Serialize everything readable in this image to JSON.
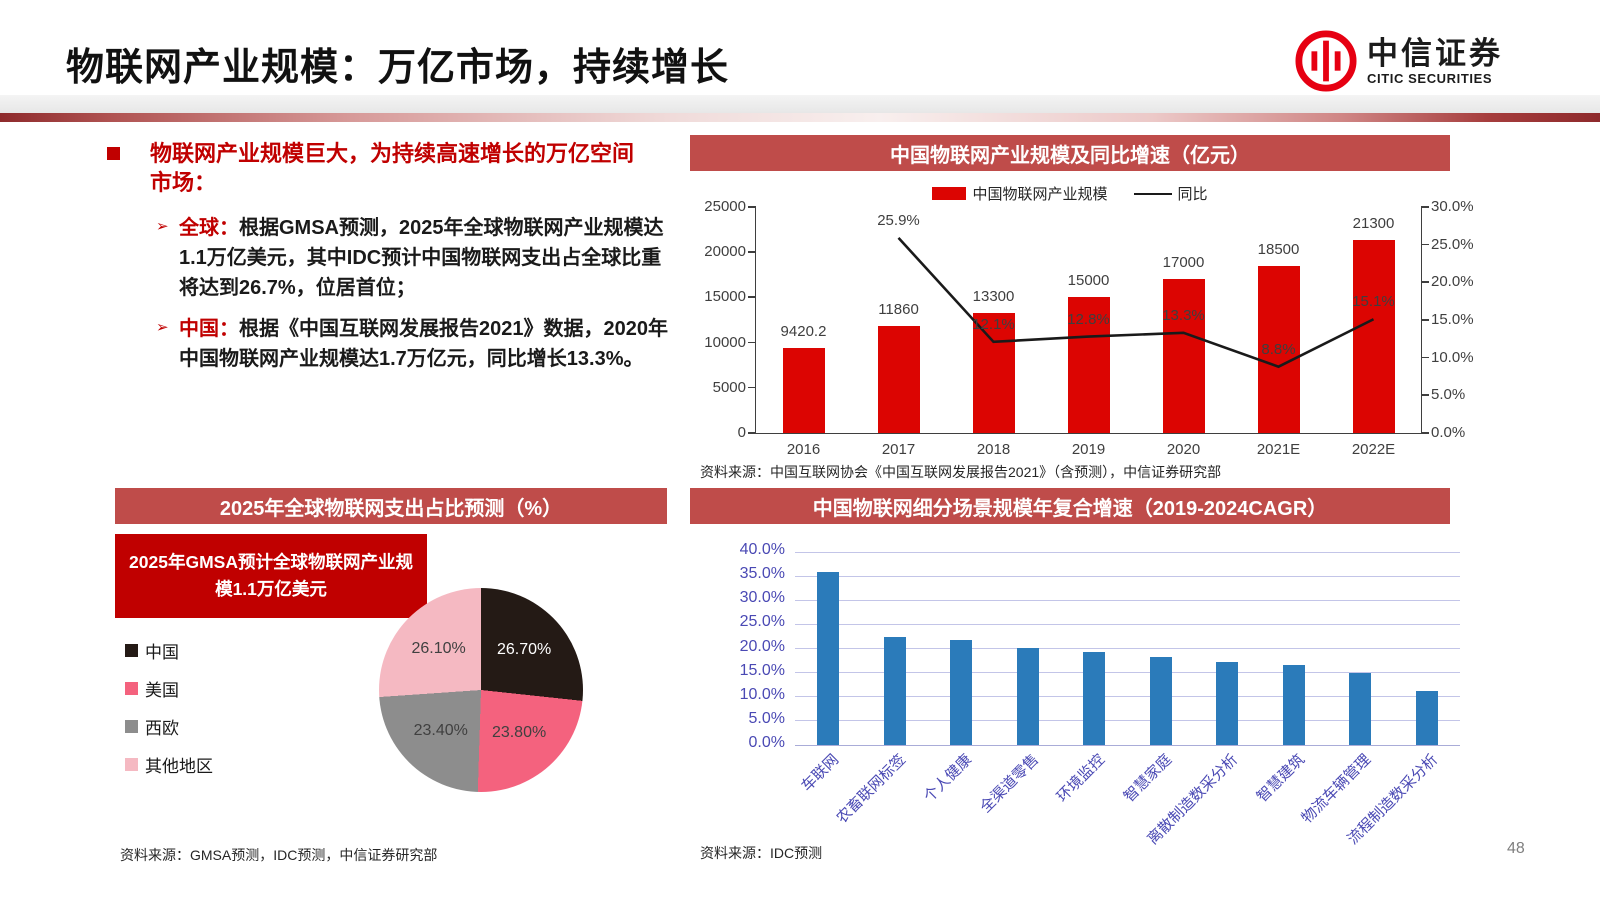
{
  "header": {
    "title": "物联网产业规模：万亿市场，持续增长",
    "logo_cn": "中信证券",
    "logo_en": "CITIC SECURITIES"
  },
  "page_number": "48",
  "colors": {
    "banner_red": "#bf4c4a",
    "deep_red": "#c00000",
    "bar_red": "#dc0502",
    "line_black": "#1a1a1a",
    "bar_blue": "#2b7bba",
    "blue_tick": "#4a49b4",
    "grid_blue": "#c3c5e8",
    "logo_red": "#e60012"
  },
  "bullets": {
    "heading": "物联网产业规模巨大，为持续高速增长的万亿空间市场：",
    "items": [
      {
        "label": "全球：",
        "text": "根据GMSA预测，2025年全球物联网产业规模达1.1万亿美元，其中IDC预计中国物联网支出占全球比重将达到26.7%，位居首位；"
      },
      {
        "label": "中国：",
        "text": "根据《中国互联网发展报告2021》数据，2020年中国物联网产业规模达1.7万亿元，同比增长13.3%。"
      }
    ]
  },
  "chart_data": [
    {
      "id": "china-iot-scale-and-growth",
      "type": "bar+line",
      "title": "中国物联网产业规模及同比增速（亿元）",
      "legend": [
        {
          "label": "中国物联网产业规模",
          "type": "bar",
          "color": "#dc0502"
        },
        {
          "label": "同比",
          "type": "line",
          "color": "#1a1a1a"
        }
      ],
      "legend_position": "top",
      "grid": false,
      "categories": [
        "2016",
        "2017",
        "2018",
        "2019",
        "2020",
        "2021E",
        "2022E"
      ],
      "series": [
        {
          "name": "中国物联网产业规模",
          "type": "bar",
          "axis": "left",
          "values": [
            9420.2,
            11860,
            13300,
            15000,
            17000,
            18500,
            21300
          ],
          "labels": [
            "9420.2",
            "11860",
            "13300",
            "15000",
            "17000",
            "18500",
            "21300"
          ],
          "color": "#dc0502"
        },
        {
          "name": "同比",
          "type": "line",
          "axis": "right",
          "values": [
            null,
            25.9,
            12.1,
            12.8,
            13.3,
            8.8,
            15.1
          ],
          "labels": [
            "",
            "25.9%",
            "12.1%",
            "12.8%",
            "13.3%",
            "8.8%",
            "15.1%"
          ],
          "color": "#1a1a1a"
        }
      ],
      "left_axis": {
        "min": 0,
        "max": 25000,
        "ticks": [
          "25000",
          "20000",
          "15000",
          "10000",
          "5000",
          "0"
        ]
      },
      "right_axis": {
        "min": 0,
        "max": 30,
        "ticks": [
          "30.0%",
          "25.0%",
          "20.0%",
          "15.0%",
          "10.0%",
          "5.0%",
          "0.0%"
        ]
      },
      "source": "资料来源：中国互联网协会《中国互联网发展报告2021》（含预测），中信证券研究部"
    },
    {
      "id": "global-iot-spend-share-2025",
      "type": "pie",
      "title": "2025年全球物联网支出占比预测（%）",
      "callout": "2025年GMSA预计全球物联网产业规模1.1万亿美元",
      "start_angle": 0,
      "direction": "clockwise",
      "legend_position": "left",
      "slices": [
        {
          "label": "中国",
          "value": 26.7,
          "display": "26.70%",
          "color": "#241a15",
          "label_color": "#ffffff"
        },
        {
          "label": "美国",
          "value": 23.8,
          "display": "23.80%",
          "color": "#f4627e",
          "label_color": "#404040"
        },
        {
          "label": "西欧",
          "value": 23.4,
          "display": "23.40%",
          "color": "#8d8d8d",
          "label_color": "#404040"
        },
        {
          "label": "其他地区",
          "value": 26.1,
          "display": "26.10%",
          "color": "#f5b9c2",
          "label_color": "#404040"
        }
      ],
      "source": "资料来源：GMSA预测，IDC预测，中信证券研究部"
    },
    {
      "id": "china-iot-segment-cagr",
      "type": "bar",
      "title": "中国物联网细分场景规模年复合增速（2019-2024CAGR）",
      "categories": [
        "车联网",
        "农畜联网标签",
        "个人健康",
        "全渠道零售",
        "环境监控",
        "智慧家庭",
        "离散制造数采分析",
        "智慧建筑",
        "物流车辆管理",
        "流程制造数采分析"
      ],
      "values": [
        35.8,
        22.3,
        21.7,
        20.1,
        19.2,
        18.3,
        17.2,
        16.5,
        14.9,
        11.2
      ],
      "ylim": [
        0,
        40
      ],
      "yticks": [
        "40.0%",
        "35.0%",
        "30.0%",
        "25.0%",
        "20.0%",
        "15.0%",
        "10.0%",
        "5.0%",
        "0.0%"
      ],
      "bar_color": "#2b7bba",
      "grid": true,
      "source": "资料来源：IDC预测"
    }
  ]
}
